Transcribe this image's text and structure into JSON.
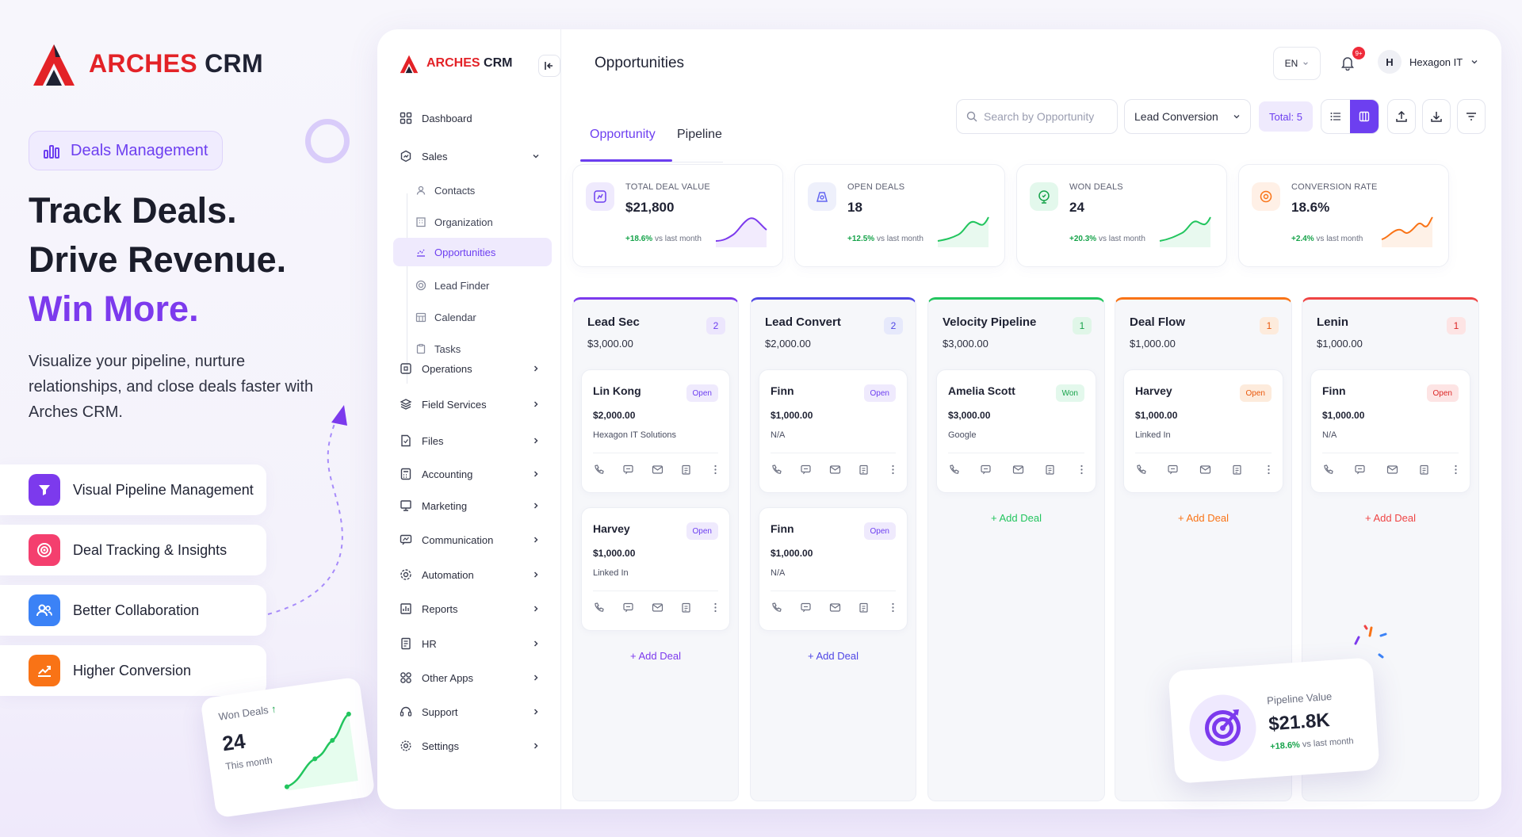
{
  "hero": {
    "brand": {
      "name_red": "ARCHES",
      "name_dark": "CRM"
    },
    "pill_label": "Deals Management",
    "headline": [
      "Track Deals.",
      "Drive Revenue.",
      "Win More."
    ],
    "description": "Visualize your pipeline, nurture relationships, and close deals faster with Arches CRM.",
    "features": [
      {
        "label": "Visual Pipeline Management",
        "icon": "funnel-icon",
        "color": "#7c3aed"
      },
      {
        "label": "Deal Tracking & Insights",
        "icon": "target-icon",
        "color": "#f43f6e"
      },
      {
        "label": "Better Collaboration",
        "icon": "users-icon",
        "color": "#3b82f6"
      },
      {
        "label": "Higher Conversion",
        "icon": "chart-up-icon",
        "color": "#f97316"
      }
    ],
    "won_card": {
      "label": "Won Deals",
      "value": "24",
      "sub": "This month"
    }
  },
  "app": {
    "brand": {
      "name_red": "ARCHES",
      "name_dark": "CRM"
    },
    "nav": [
      {
        "label": "Dashboard",
        "icon": "grid-icon"
      },
      {
        "label": "Sales",
        "icon": "sales-icon"
      },
      {
        "label": "Operations",
        "icon": "operations-icon"
      },
      {
        "label": "Field Services",
        "icon": "layers-icon"
      },
      {
        "label": "Files",
        "icon": "file-icon"
      },
      {
        "label": "Accounting",
        "icon": "calculator-icon"
      },
      {
        "label": "Marketing",
        "icon": "marketing-icon"
      },
      {
        "label": "Communication",
        "icon": "chat-icon"
      },
      {
        "label": "Automation",
        "icon": "automation-icon"
      },
      {
        "label": "Reports",
        "icon": "report-icon"
      },
      {
        "label": "HR",
        "icon": "hr-icon"
      },
      {
        "label": "Other Apps",
        "icon": "apps-icon"
      },
      {
        "label": "Support",
        "icon": "support-icon"
      },
      {
        "label": "Settings",
        "icon": "gear-icon"
      }
    ],
    "sales_sub": [
      {
        "label": "Contacts"
      },
      {
        "label": "Organization"
      },
      {
        "label": "Opportunities",
        "active": true
      },
      {
        "label": "Lead Finder"
      },
      {
        "label": "Calendar"
      },
      {
        "label": "Tasks"
      }
    ],
    "topbar": {
      "title": "Opportunities",
      "lang": "EN",
      "notif_badge": "9+",
      "avatar_initial": "H",
      "user_name": "Hexagon IT"
    },
    "tabs": [
      {
        "label": "Opportunity",
        "active": true
      },
      {
        "label": "Pipeline"
      }
    ],
    "toolbar": {
      "search_placeholder": "Search by Opportunity",
      "filter_value": "Lead Conversion",
      "total": "Total: 5"
    },
    "stats": [
      {
        "label": "TOTAL DEAL VALUE",
        "value": "$21,800",
        "delta": "+18.6%",
        "delta_text": "vs last month",
        "color": "#7c3aed"
      },
      {
        "label": "OPEN DEALS",
        "value": "18",
        "delta": "+12.5%",
        "delta_text": "vs last month",
        "color": "#22c55e"
      },
      {
        "label": "WON DEALS",
        "value": "24",
        "delta": "+20.3%",
        "delta_text": "vs last month",
        "color": "#22c55e"
      },
      {
        "label": "CONVERSION RATE",
        "value": "18.6%",
        "delta": "+2.4%",
        "delta_text": "vs last month",
        "color": "#f97316"
      }
    ],
    "columns": [
      {
        "title": "Lead Sec",
        "amount": "$3,000.00",
        "count": "2",
        "color": "#7c3aed",
        "cards": [
          {
            "name": "Lin Kong",
            "status": "Open",
            "amount": "$2,000.00",
            "org": "Hexagon IT Solutions"
          },
          {
            "name": "Harvey",
            "status": "Open",
            "amount": "$1,000.00",
            "org": "Linked In"
          }
        ]
      },
      {
        "title": "Lead Convert",
        "amount": "$2,000.00",
        "count": "2",
        "color": "#4f46e5",
        "cards": [
          {
            "name": "Finn",
            "status": "Open",
            "amount": "$1,000.00",
            "org": "N/A"
          },
          {
            "name": "Finn",
            "status": "Open",
            "amount": "$1,000.00",
            "org": "N/A"
          }
        ]
      },
      {
        "title": "Velocity Pipeline",
        "amount": "$3,000.00",
        "count": "1",
        "color": "#22c55e",
        "cards": [
          {
            "name": "Amelia Scott",
            "status": "Won",
            "amount": "$3,000.00",
            "org": "Google"
          }
        ]
      },
      {
        "title": "Deal Flow",
        "amount": "$1,000.00",
        "count": "1",
        "color": "#f97316",
        "cards": [
          {
            "name": "Harvey",
            "status": "Open",
            "amount": "$1,000.00",
            "org": "Linked In"
          }
        ]
      },
      {
        "title": "Lenin",
        "amount": "$1,000.00",
        "count": "1",
        "color": "#ef4444",
        "cards": [
          {
            "name": "Finn",
            "status": "Open",
            "amount": "$1,000.00",
            "org": "N/A"
          }
        ]
      }
    ],
    "add_deal_label": "+ Add Deal"
  },
  "pipeline_card": {
    "label": "Pipeline Value",
    "value": "$21.8K",
    "delta": "+18.6%",
    "delta_text": "vs last month"
  }
}
